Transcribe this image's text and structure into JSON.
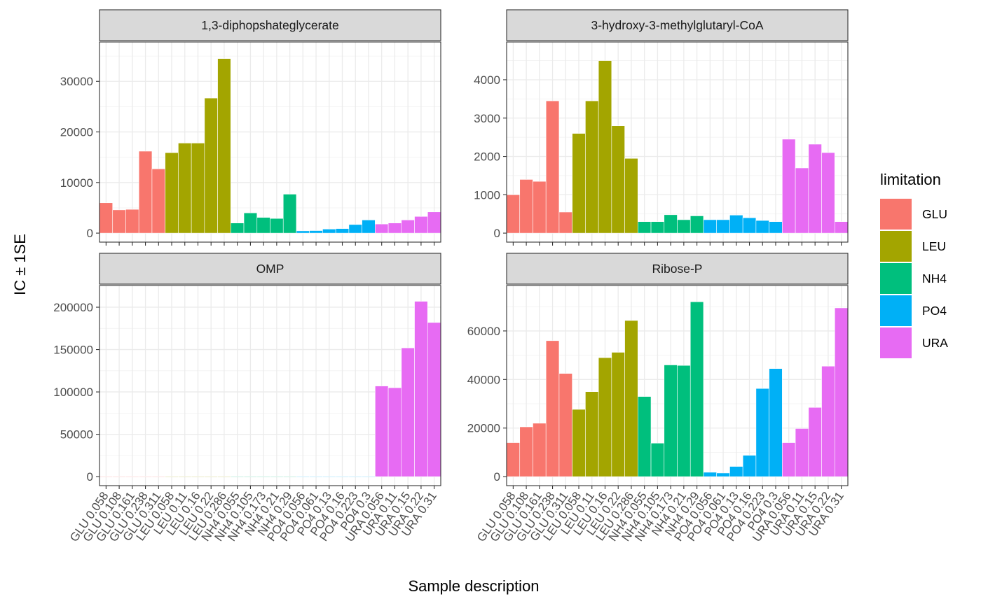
{
  "chart_data": {
    "type": "bar",
    "layout": "facet-grid-2x2",
    "ylabel": "IC ± 1SE",
    "xlabel": "Sample description",
    "grid": true,
    "legend": {
      "title": "limitation",
      "placement": "right",
      "entries": [
        {
          "name": "GLU",
          "color": "#F8766D"
        },
        {
          "name": "LEU",
          "color": "#A3A500"
        },
        {
          "name": "NH4",
          "color": "#00BF7D"
        },
        {
          "name": "PO4",
          "color": "#00B0F6"
        },
        {
          "name": "URA",
          "color": "#E76BF3"
        }
      ]
    },
    "categories": [
      "GLU 0.058",
      "GLU 0.108",
      "GLU 0.161",
      "GLU 0.238",
      "GLU 0.311",
      "LEU 0.058",
      "LEU 0.11",
      "LEU 0.16",
      "LEU 0.22",
      "LEU 0.286",
      "NH4 0.055",
      "NH4 0.105",
      "NH4 0.173",
      "NH4 0.21",
      "NH4 0.29",
      "PO4 0.056",
      "PO4 0.061",
      "PO4 0.13",
      "PO4 0.16",
      "PO4 0.223",
      "PO4 0.3",
      "URA 0.056",
      "URA 0.11",
      "URA 0.15",
      "URA 0.22",
      "URA 0.31"
    ],
    "groups": [
      "GLU",
      "GLU",
      "GLU",
      "GLU",
      "GLU",
      "LEU",
      "LEU",
      "LEU",
      "LEU",
      "LEU",
      "NH4",
      "NH4",
      "NH4",
      "NH4",
      "NH4",
      "PO4",
      "PO4",
      "PO4",
      "PO4",
      "PO4",
      "PO4",
      "URA",
      "URA",
      "URA",
      "URA",
      "URA"
    ],
    "panels": [
      {
        "title": "1,3-diphopshateglycerate",
        "ylim": [
          0,
          36000
        ],
        "yticks": [
          0,
          10000,
          20000,
          30000
        ],
        "values": [
          6000,
          4600,
          4700,
          16200,
          12700,
          15900,
          17800,
          17800,
          26700,
          34500,
          2000,
          4000,
          3100,
          2900,
          7700,
          450,
          500,
          800,
          900,
          1700,
          2600,
          1800,
          2000,
          2600,
          3300,
          4200
        ]
      },
      {
        "title": "3-hydroxy-3-methylglutaryl-CoA",
        "ylim": [
          0,
          4750
        ],
        "yticks": [
          0,
          1000,
          2000,
          3000,
          4000
        ],
        "values": [
          1000,
          1400,
          1350,
          3450,
          550,
          2600,
          3450,
          4500,
          2800,
          1950,
          300,
          300,
          480,
          350,
          450,
          350,
          350,
          470,
          400,
          330,
          300,
          2450,
          1700,
          2320,
          2100,
          300
        ]
      },
      {
        "title": "OMP",
        "ylim": [
          0,
          215000
        ],
        "yticks": [
          0,
          50000,
          100000,
          150000,
          200000
        ],
        "values": [
          300,
          300,
          300,
          300,
          300,
          300,
          300,
          300,
          300,
          300,
          300,
          300,
          300,
          300,
          300,
          300,
          300,
          300,
          300,
          300,
          300,
          107000,
          105000,
          152000,
          207000,
          182000
        ]
      },
      {
        "title": "Ribose-P",
        "ylim": [
          0,
          75000
        ],
        "yticks": [
          0,
          20000,
          40000,
          60000
        ],
        "values": [
          14000,
          20500,
          22000,
          56000,
          42500,
          27700,
          35000,
          49000,
          51200,
          64300,
          33000,
          13800,
          46000,
          45800,
          72000,
          1800,
          1500,
          4200,
          8800,
          36300,
          44500,
          14000,
          19800,
          28500,
          45500,
          69500
        ]
      }
    ]
  }
}
